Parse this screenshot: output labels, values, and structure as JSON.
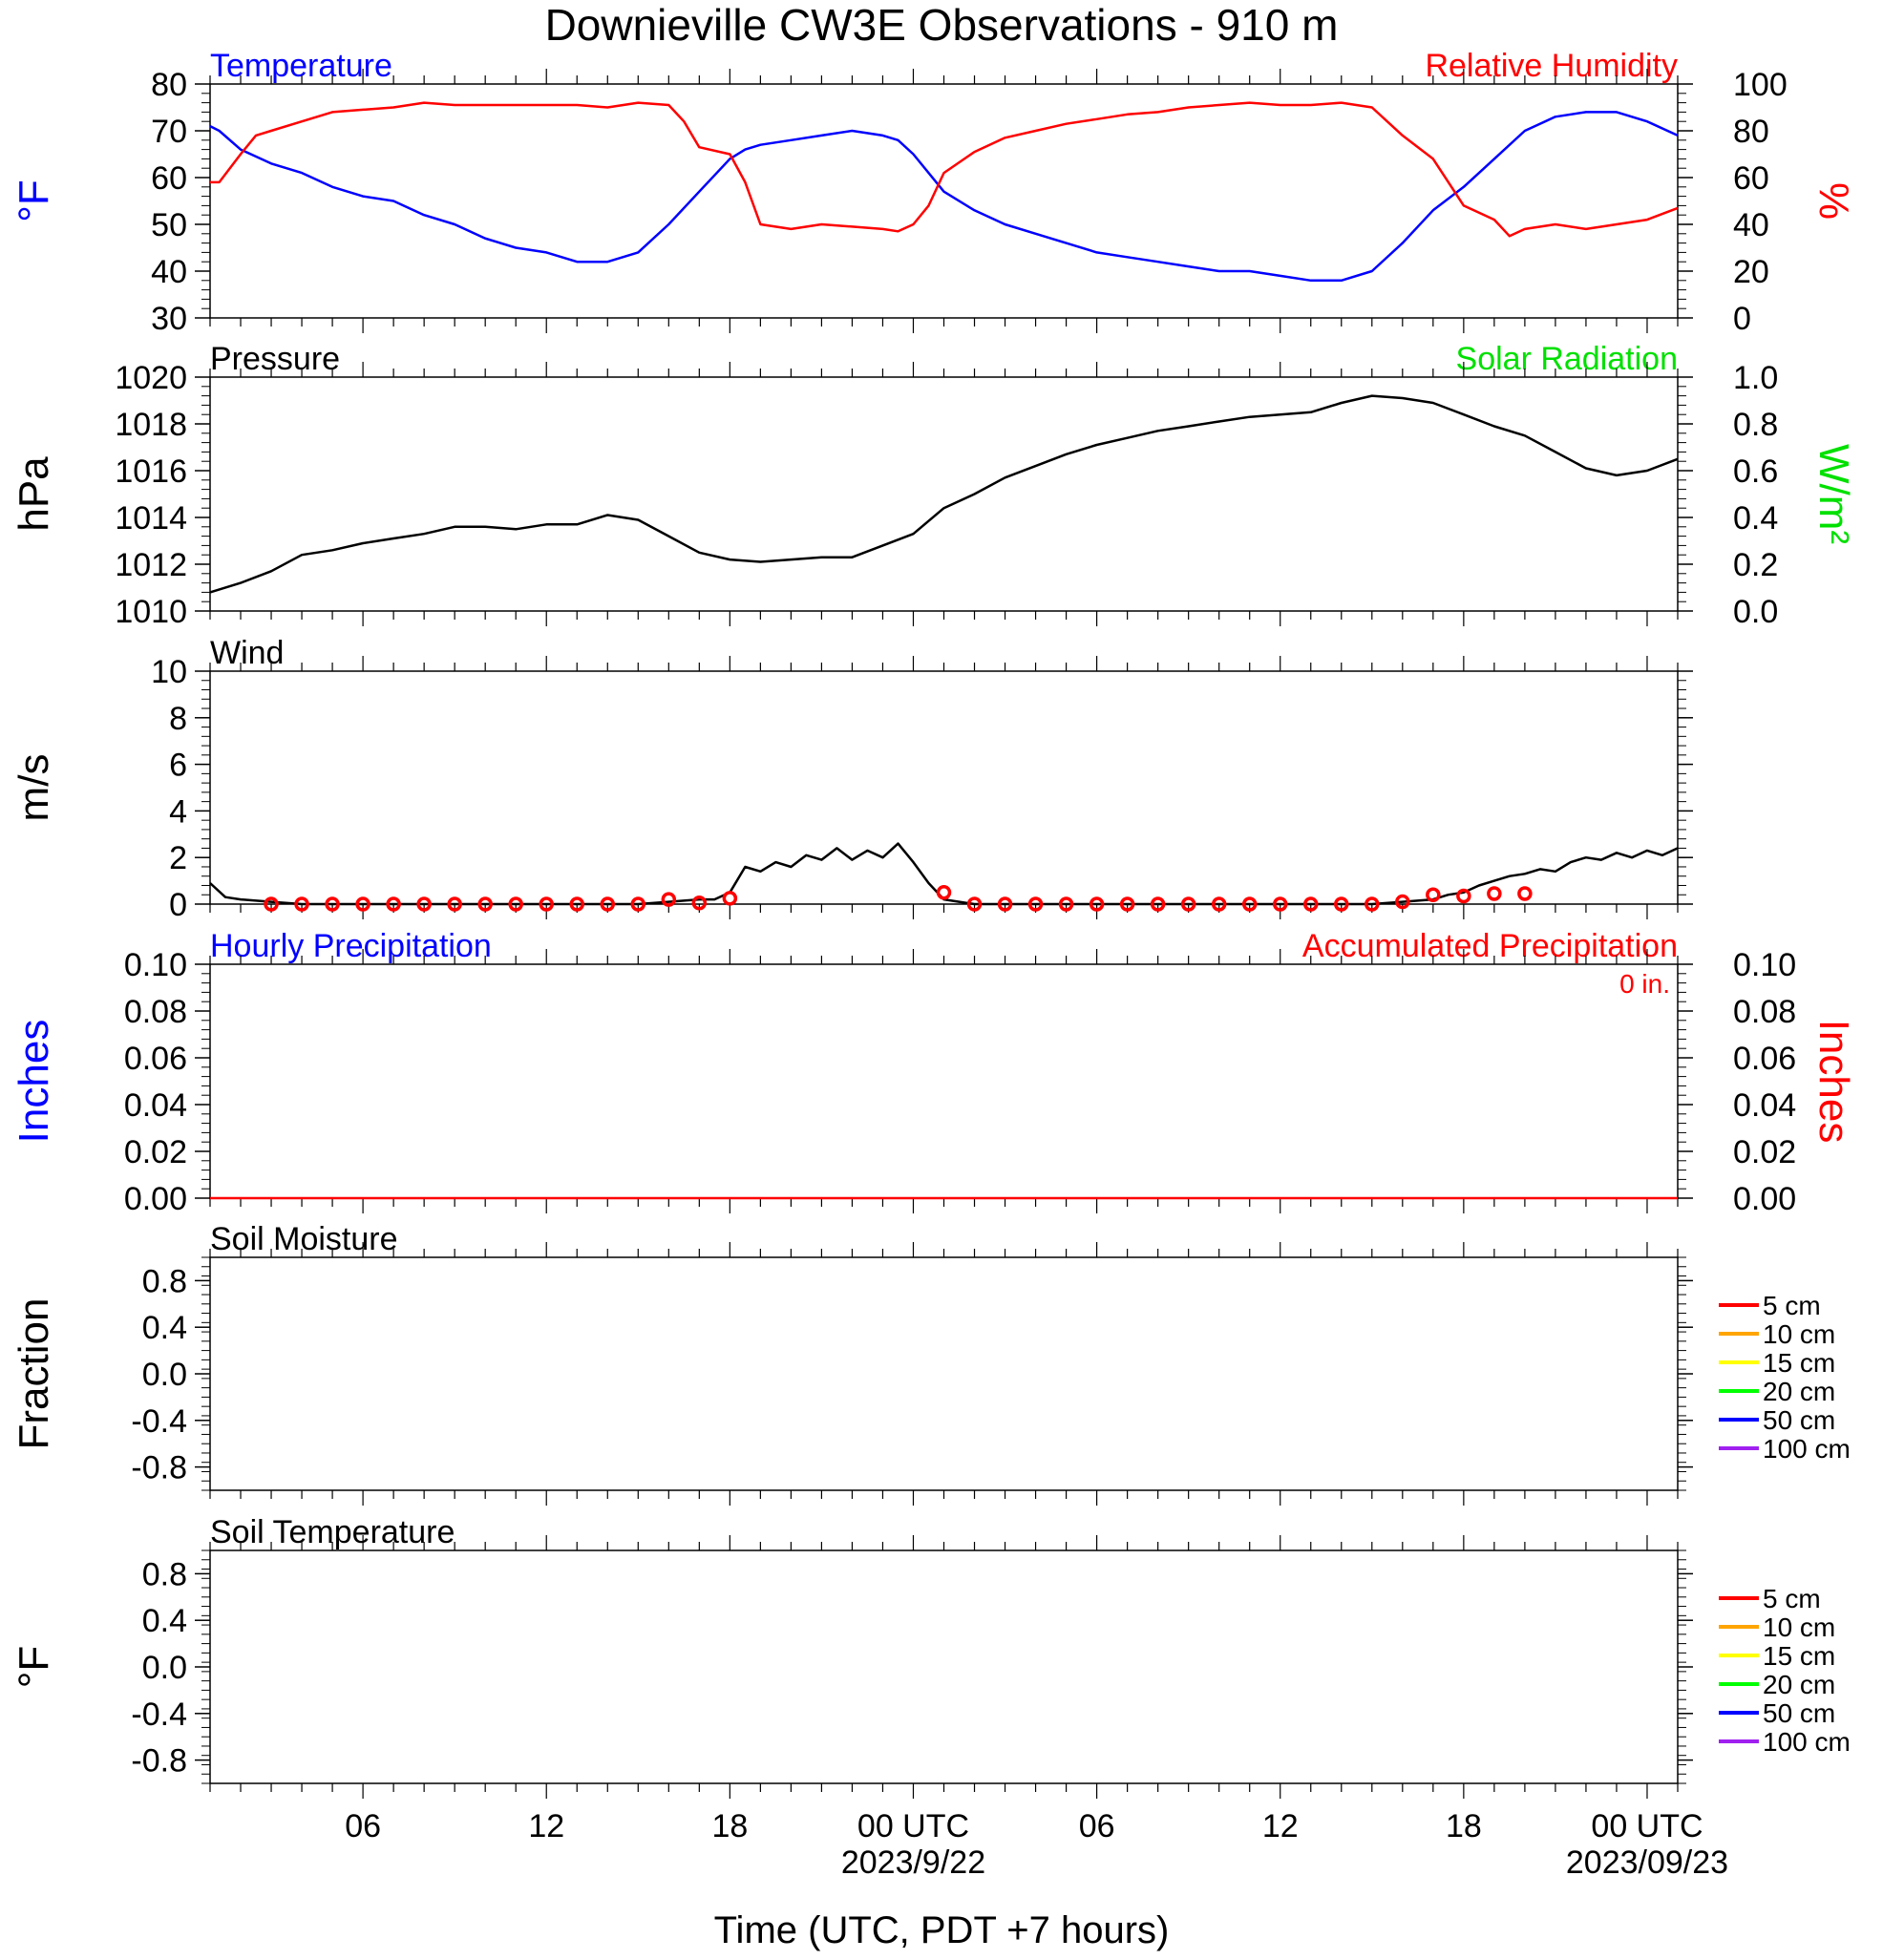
{
  "title": "Downieville CW3E Observations - 910 m",
  "xlabel": "Time (UTC, PDT +7 hours)",
  "colors": {
    "blue": "#0000ff",
    "red": "#ff0000",
    "green": "#00e000",
    "black": "#000000"
  },
  "x_axis": {
    "range_hours": [
      0,
      48
    ],
    "ticks": [
      {
        "h": 5,
        "label": "06",
        "sub": ""
      },
      {
        "h": 11,
        "label": "12",
        "sub": ""
      },
      {
        "h": 17,
        "label": "18",
        "sub": ""
      },
      {
        "h": 23,
        "label": "00 UTC",
        "sub": "2023/9/22"
      },
      {
        "h": 29,
        "label": "06",
        "sub": ""
      },
      {
        "h": 35,
        "label": "12",
        "sub": ""
      },
      {
        "h": 41,
        "label": "18",
        "sub": ""
      },
      {
        "h": 47,
        "label": "00 UTC",
        "sub": "2023/09/23"
      }
    ]
  },
  "legend_soil": [
    "5 cm",
    "10 cm",
    "15 cm",
    "20 cm",
    "50 cm",
    "100 cm"
  ],
  "legend_colors": [
    "#ff0000",
    "#ffa500",
    "#ffff00",
    "#00ff00",
    "#0000ff",
    "#a020f0"
  ],
  "chart_data": [
    {
      "type": "line",
      "panel": "temperature_rh",
      "left_title": "Temperature",
      "right_title": "Relative Humidity",
      "ylabel_left": "°F",
      "ylabel_right": "%",
      "ylim_left": [
        30,
        80
      ],
      "ylim_right": [
        0,
        100
      ],
      "yticks_left": [
        "30",
        "40",
        "50",
        "60",
        "70",
        "80"
      ],
      "yticks_right": [
        "0",
        "20",
        "40",
        "60",
        "80",
        "100"
      ],
      "series": [
        {
          "name": "Temperature",
          "axis": "left",
          "color": "#0000ff",
          "x": [
            0,
            0.3,
            1,
            2,
            3,
            4,
            5,
            6,
            7,
            8,
            9,
            10,
            11,
            12,
            13,
            14,
            15,
            16,
            17,
            17.5,
            18,
            19,
            20,
            21,
            22,
            22.5,
            23,
            24,
            25,
            26,
            27,
            28,
            29,
            30,
            31,
            32,
            33,
            34,
            35,
            36,
            37,
            38,
            39,
            40,
            41,
            42,
            43,
            44,
            45,
            46,
            47,
            48
          ],
          "y": [
            71,
            70,
            66,
            63,
            61,
            58,
            56,
            55,
            52,
            50,
            47,
            45,
            44,
            42,
            42,
            44,
            50,
            57,
            64,
            66,
            67,
            68,
            69,
            70,
            69,
            68,
            65,
            57,
            53,
            50,
            48,
            46,
            44,
            43,
            42,
            41,
            40,
            40,
            39,
            38,
            38,
            40,
            46,
            53,
            58,
            64,
            70,
            73,
            74,
            74,
            72,
            69
          ]
        },
        {
          "name": "Relative Humidity",
          "axis": "right",
          "color": "#ff0000",
          "x": [
            0,
            0.3,
            1,
            1.5,
            2,
            3,
            4,
            5,
            6,
            7,
            8,
            9,
            10,
            11,
            12,
            13,
            14,
            15,
            15.5,
            16,
            17,
            17.5,
            18,
            19,
            20,
            21,
            22,
            22.5,
            23,
            23.5,
            24,
            25,
            26,
            27,
            28,
            29,
            30,
            31,
            32,
            33,
            34,
            35,
            36,
            37,
            38,
            39,
            40,
            41,
            42,
            42.5,
            43,
            44,
            45,
            46,
            47,
            48
          ],
          "y": [
            58,
            58,
            70,
            78,
            80,
            84,
            88,
            89,
            90,
            92,
            91,
            91,
            91,
            91,
            91,
            90,
            92,
            91,
            84,
            73,
            70,
            58,
            40,
            38,
            40,
            39,
            38,
            37,
            40,
            48,
            62,
            71,
            77,
            80,
            83,
            85,
            87,
            88,
            90,
            91,
            92,
            91,
            91,
            92,
            90,
            78,
            68,
            48,
            42,
            35,
            38,
            40,
            38,
            40,
            42,
            47
          ]
        }
      ]
    },
    {
      "type": "line",
      "panel": "pressure",
      "left_title": "Pressure",
      "right_title": "Solar Radiation",
      "ylabel_left": "hPa",
      "ylabel_right": "W/m²",
      "ylim_left": [
        1010,
        1020
      ],
      "ylim_right": [
        0.0,
        1.0
      ],
      "yticks_left": [
        "1010",
        "1012",
        "1014",
        "1016",
        "1018",
        "1020"
      ],
      "yticks_right": [
        "0.0",
        "0.2",
        "0.4",
        "0.6",
        "0.8",
        "1.0"
      ],
      "series": [
        {
          "name": "Pressure",
          "axis": "left",
          "color": "#000000",
          "x": [
            0,
            1,
            2,
            3,
            4,
            5,
            6,
            7,
            8,
            9,
            10,
            11,
            12,
            13,
            14,
            15,
            16,
            17,
            18,
            19,
            20,
            21,
            22,
            23,
            24,
            25,
            26,
            27,
            28,
            29,
            30,
            31,
            32,
            33,
            34,
            35,
            36,
            37,
            38,
            39,
            40,
            41,
            42,
            43,
            44,
            45,
            46,
            47,
            48
          ],
          "y": [
            1010.8,
            1011.2,
            1011.7,
            1012.4,
            1012.6,
            1012.9,
            1013.1,
            1013.3,
            1013.6,
            1013.6,
            1013.5,
            1013.7,
            1013.7,
            1014.1,
            1013.9,
            1013.2,
            1012.5,
            1012.2,
            1012.1,
            1012.2,
            1012.3,
            1012.3,
            1012.8,
            1013.3,
            1014.4,
            1015.0,
            1015.7,
            1016.2,
            1016.7,
            1017.1,
            1017.4,
            1017.7,
            1017.9,
            1018.1,
            1018.3,
            1018.4,
            1018.5,
            1018.9,
            1019.2,
            1019.1,
            1018.9,
            1018.4,
            1017.9,
            1017.5,
            1016.8,
            1016.1,
            1015.8,
            1016.0,
            1016.5
          ]
        }
      ]
    },
    {
      "type": "line",
      "panel": "wind",
      "left_title": "Wind",
      "ylabel_left": "m/s",
      "ylim_left": [
        0,
        10
      ],
      "yticks_left": [
        "0",
        "2",
        "4",
        "6",
        "8",
        "10"
      ],
      "series": [
        {
          "name": "Wind",
          "axis": "left",
          "color": "#000000",
          "x": [
            0,
            0.5,
            1,
            2,
            3,
            4,
            5,
            6,
            7,
            8,
            9,
            10,
            11,
            12,
            13,
            14,
            15,
            16,
            16.5,
            17,
            17.5,
            18,
            18.5,
            19,
            19.5,
            20,
            20.5,
            21,
            21.5,
            22,
            22.5,
            23,
            23.5,
            24,
            24.5,
            25,
            26,
            27,
            28,
            29,
            30,
            31,
            32,
            33,
            34,
            35,
            36,
            37,
            38,
            39,
            40,
            40.5,
            41,
            41.5,
            42,
            42.5,
            43,
            43.5,
            44,
            44.5,
            45,
            45.5,
            46,
            46.5,
            47,
            47.5,
            48
          ],
          "y": [
            0.9,
            0.3,
            0.2,
            0.1,
            0,
            0,
            0,
            0,
            0,
            0,
            0,
            0,
            0,
            0,
            0,
            0,
            0.1,
            0.2,
            0.2,
            0.5,
            1.6,
            1.4,
            1.8,
            1.6,
            2.1,
            1.9,
            2.4,
            1.9,
            2.3,
            2.0,
            2.6,
            1.8,
            0.9,
            0.2,
            0.1,
            0,
            0,
            0,
            0,
            0,
            0,
            0,
            0,
            0,
            0,
            0,
            0,
            0,
            0,
            0.1,
            0.2,
            0.4,
            0.5,
            0.8,
            1.0,
            1.2,
            1.3,
            1.5,
            1.4,
            1.8,
            2.0,
            1.9,
            2.2,
            2.0,
            2.3,
            2.1,
            2.4
          ]
        },
        {
          "name": "Wind markers",
          "axis": "left",
          "color": "#ff0000",
          "x": [
            2,
            3,
            4,
            5,
            6,
            7,
            8,
            9,
            10,
            11,
            12,
            13,
            14,
            15,
            16,
            17,
            24,
            25,
            26,
            27,
            28,
            29,
            30,
            31,
            32,
            33,
            34,
            35,
            36,
            37,
            38,
            39,
            40,
            41,
            42,
            43
          ],
          "y": [
            0,
            0,
            0,
            0,
            0,
            0,
            0,
            0,
            0,
            0,
            0,
            0,
            0,
            0.2,
            0.05,
            0.25,
            0.5,
            0,
            0,
            0,
            0,
            0,
            0,
            0,
            0,
            0,
            0,
            0,
            0,
            0,
            0,
            0.1,
            0.4,
            0.35,
            0.45,
            0.45
          ]
        }
      ]
    },
    {
      "type": "line",
      "panel": "precipitation",
      "left_title": "Hourly Precipitation",
      "right_title": "Accumulated Precipitation",
      "annotation": "0 in.",
      "ylabel_left": "Inches",
      "ylabel_right": "Inches",
      "ylim_left": [
        0,
        0.1
      ],
      "ylim_right": [
        0,
        0.1
      ],
      "yticks_left": [
        "0.00",
        "0.02",
        "0.04",
        "0.06",
        "0.08",
        "0.10"
      ],
      "yticks_right": [
        "0.00",
        "0.02",
        "0.04",
        "0.06",
        "0.08",
        "0.10"
      ],
      "series": [
        {
          "name": "Accumulated Precipitation",
          "axis": "right",
          "color": "#ff0000",
          "x": [
            0,
            48
          ],
          "y": [
            0,
            0
          ]
        }
      ]
    },
    {
      "type": "line",
      "panel": "soil_moisture",
      "left_title": "Soil Moisture",
      "ylabel_left": "Fraction",
      "ylim_left": [
        -1.0,
        1.0
      ],
      "yticks_left": [
        "-0.8",
        "-0.4",
        "0.0",
        "0.4",
        "0.8"
      ],
      "series": []
    },
    {
      "type": "line",
      "panel": "soil_temperature",
      "left_title": "Soil Temperature",
      "ylabel_left": "°F",
      "ylim_left": [
        -1.0,
        1.0
      ],
      "yticks_left": [
        "-0.8",
        "-0.4",
        "0.0",
        "0.4",
        "0.8"
      ],
      "series": []
    }
  ]
}
